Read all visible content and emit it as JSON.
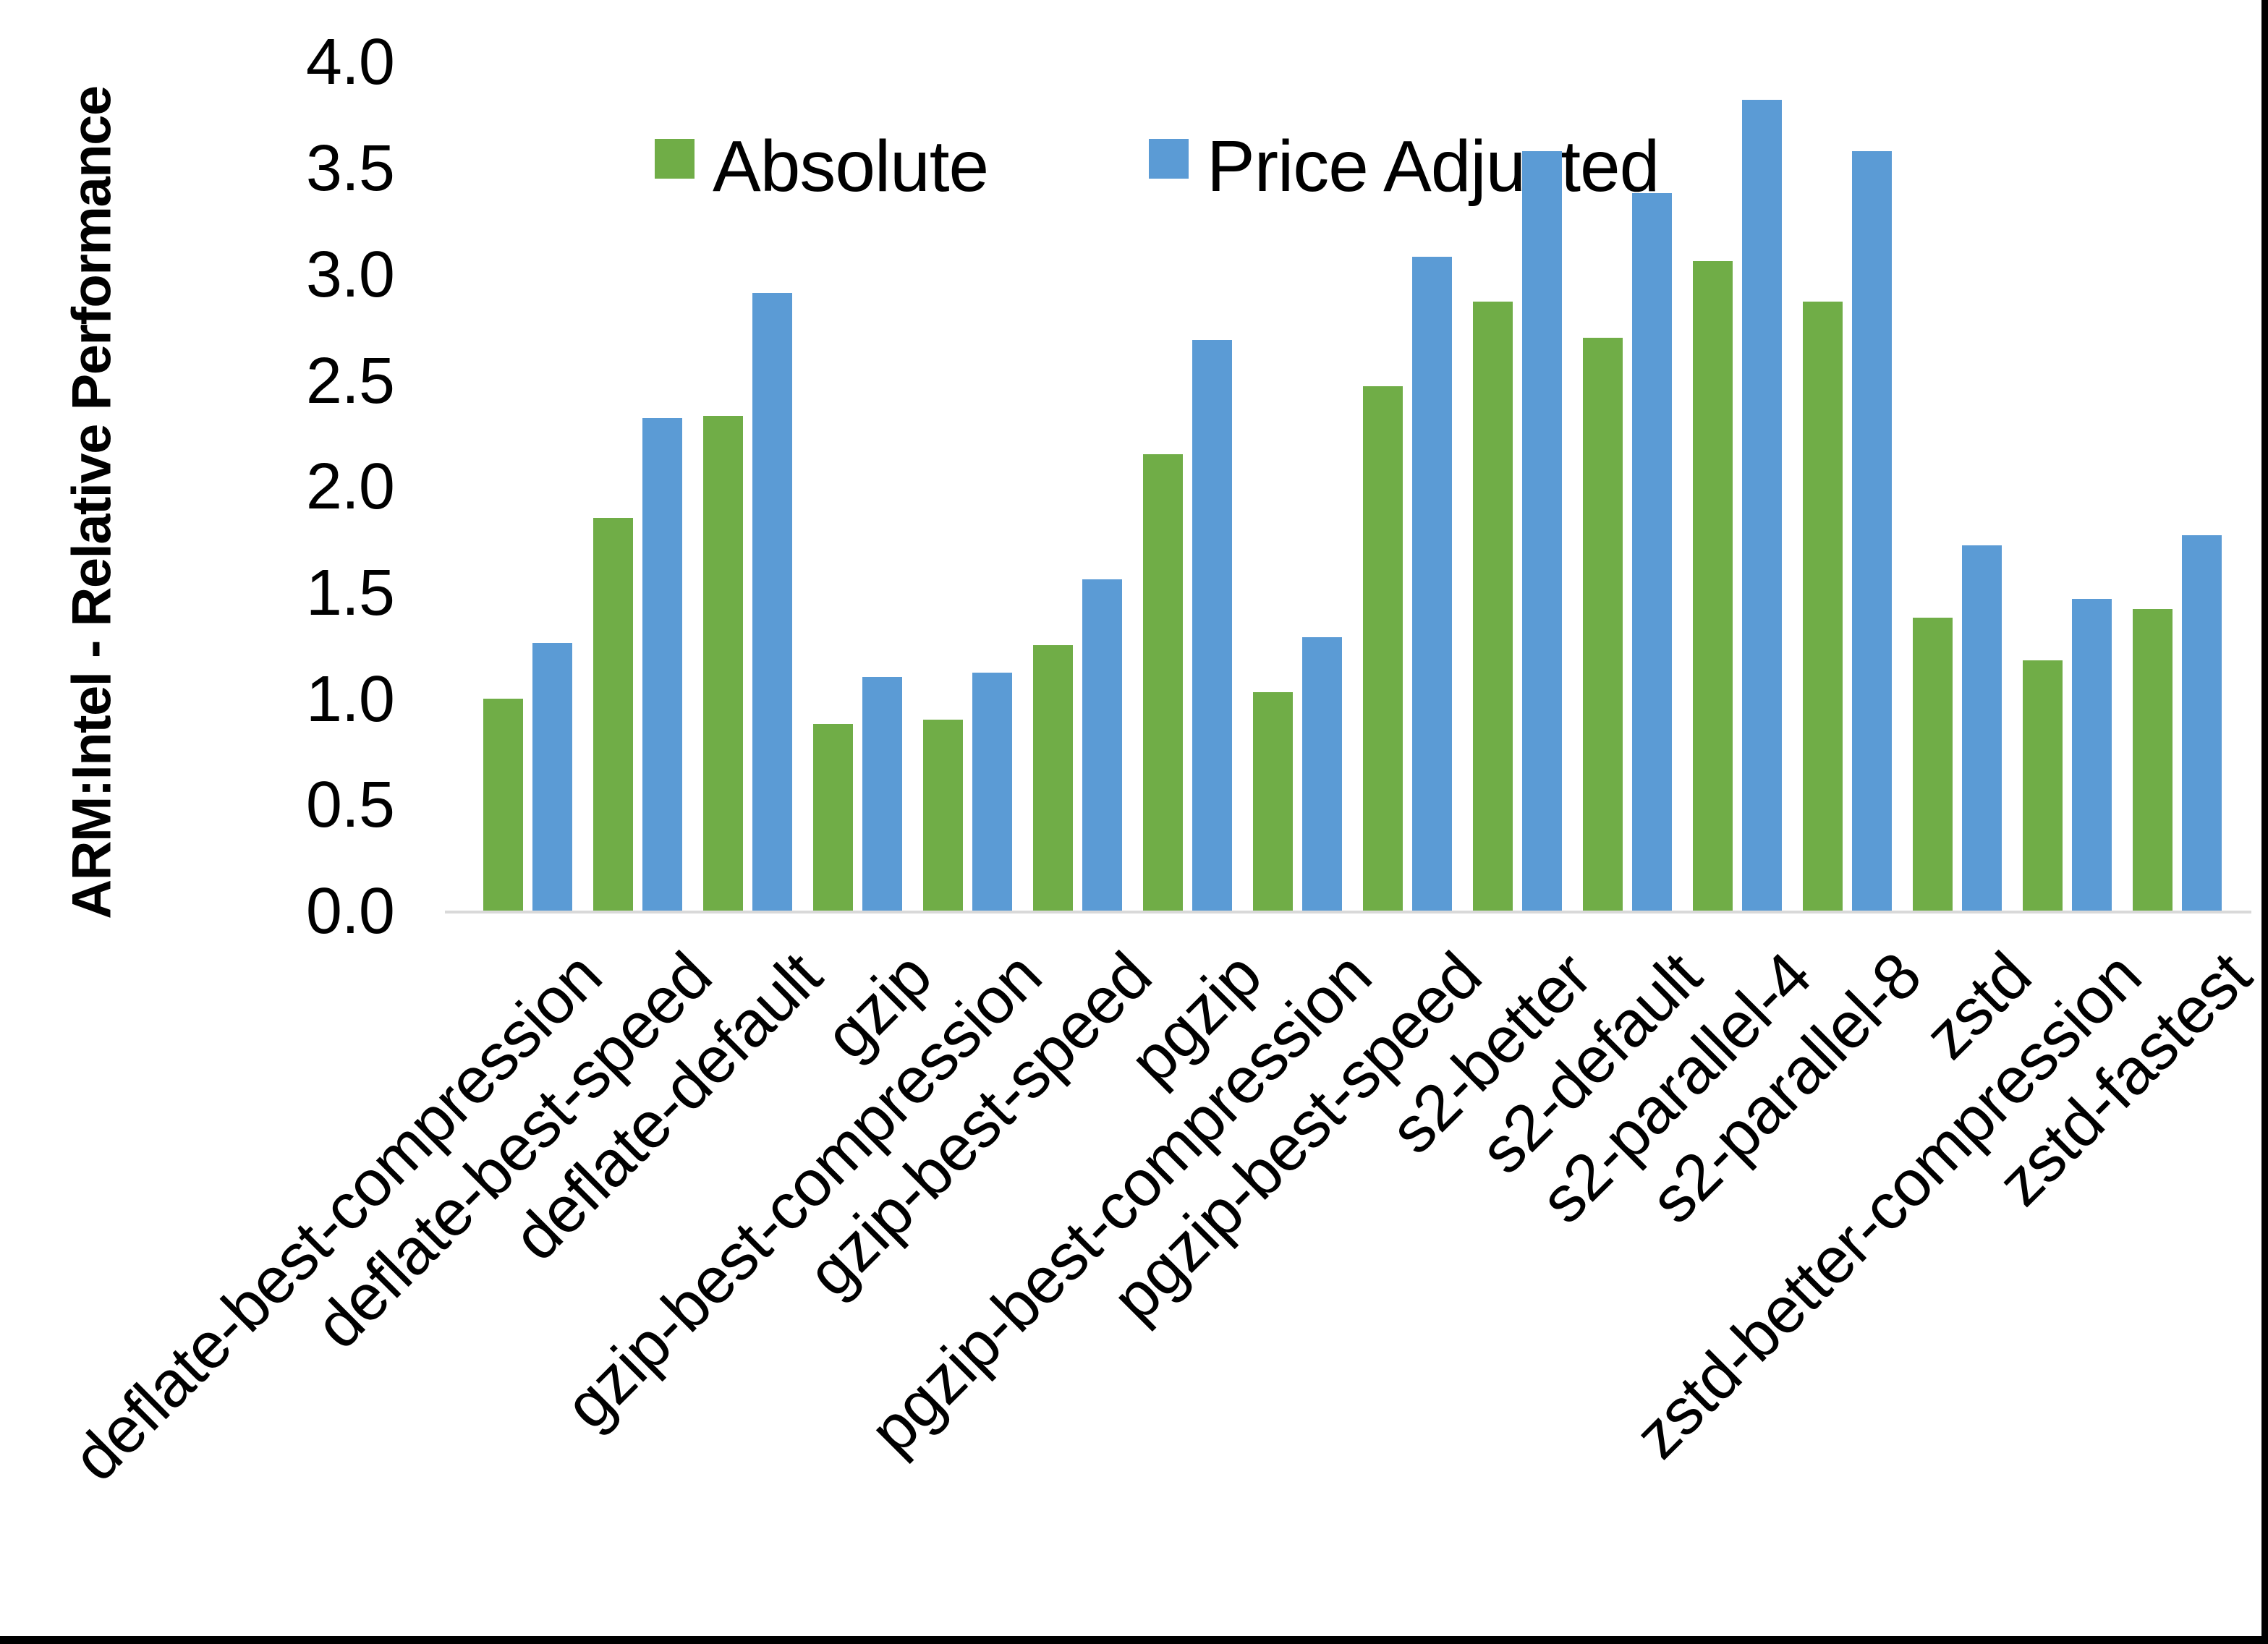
{
  "chart_data": {
    "type": "bar",
    "title": "",
    "ylabel": "ARM:Intel - Relative Performance",
    "xlabel": "",
    "ylim": [
      0.0,
      4.0
    ],
    "ytick_step": 0.5,
    "ytick_labels": [
      "0.0",
      "0.5",
      "1.0",
      "1.5",
      "2.0",
      "2.5",
      "3.0",
      "3.5",
      "4.0"
    ],
    "grid": false,
    "legend_position": "top-center",
    "categories": [
      "deflate-best-compression",
      "deflate-best-speed",
      "deflate-default",
      "gzip",
      "gzip-best-compression",
      "gzip-best-speed",
      "pgzip",
      "pgzip-best-compression",
      "pgzip-best-speed",
      "s2-better",
      "s2-default",
      "s2-parallel-4",
      "s2-parallel-8",
      "zstd",
      "zstd-better-compression",
      "zstd-fastest"
    ],
    "series": [
      {
        "name": "Absolute",
        "color": "#70AD47",
        "values": [
          1.0,
          1.85,
          2.33,
          0.88,
          0.9,
          1.25,
          2.15,
          1.03,
          2.47,
          2.87,
          2.7,
          3.06,
          2.87,
          1.38,
          1.18,
          1.42
        ]
      },
      {
        "name": "Price Adjusted",
        "color": "#5B9BD5",
        "values": [
          1.26,
          2.32,
          2.91,
          1.1,
          1.12,
          1.56,
          2.69,
          1.29,
          3.08,
          3.58,
          3.38,
          3.82,
          3.58,
          1.72,
          1.47,
          1.77
        ]
      }
    ]
  },
  "legend": {
    "absolute_label": "Absolute",
    "price_adjusted_label": "Price Adjusted"
  },
  "axis_colors": {
    "baseline": "#d9d9d9",
    "text": "#000000"
  }
}
